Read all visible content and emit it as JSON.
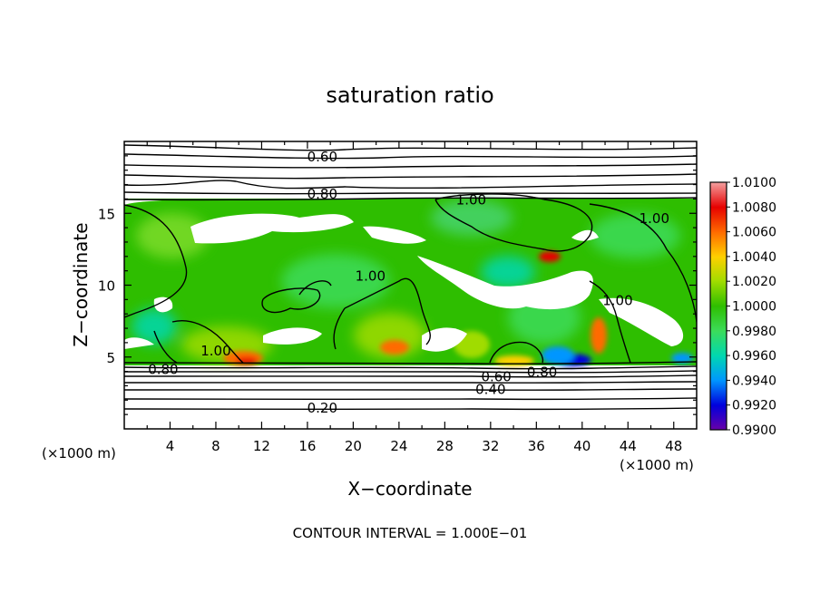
{
  "chart_data": {
    "type": "heatmap",
    "title": "saturation ratio",
    "xlabel": "X−coordinate",
    "ylabel": "Z−coordinate",
    "x_unit": "(×1000 m)",
    "z_unit": "(×1000 m)",
    "xlim": [
      0,
      50
    ],
    "ylim": [
      0,
      20
    ],
    "x_ticks": [
      "4",
      "8",
      "12",
      "16",
      "20",
      "24",
      "28",
      "32",
      "36",
      "40",
      "44",
      "48"
    ],
    "y_ticks": [
      "5",
      "10",
      "15"
    ],
    "colorbar": {
      "labels": [
        "1.0100",
        "1.0080",
        "1.0060",
        "1.0040",
        "1.0020",
        "1.0000",
        "0.9980",
        "0.9960",
        "0.9940",
        "0.9920",
        "0.9900"
      ],
      "colors": [
        "#f4a0a0",
        "#e60000",
        "#ff6a00",
        "#ffd000",
        "#a0dc00",
        "#2ebe00",
        "#3cdc5a",
        "#00d8b0",
        "#0096ff",
        "#0000dc",
        "#6a00a8"
      ]
    },
    "contour_labels": [
      {
        "text": "0.60",
        "x": 17.3,
        "y": 19.0
      },
      {
        "text": "0.80",
        "x": 17.3,
        "y": 16.4
      },
      {
        "text": "1.00",
        "x": 30.3,
        "y": 16.0
      },
      {
        "text": "1.00",
        "x": 46.3,
        "y": 14.7
      },
      {
        "text": "1.00",
        "x": 21.5,
        "y": 10.7
      },
      {
        "text": "1.00",
        "x": 43.1,
        "y": 9.0
      },
      {
        "text": "1.00",
        "x": 8.0,
        "y": 5.5
      },
      {
        "text": "0.80",
        "x": 3.4,
        "y": 4.2
      },
      {
        "text": "0.80",
        "x": 36.5,
        "y": 4.0
      },
      {
        "text": "0.60",
        "x": 32.5,
        "y": 3.7
      },
      {
        "text": "0.40",
        "x": 32.0,
        "y": 2.8
      },
      {
        "text": "0.20",
        "x": 17.3,
        "y": 1.5
      }
    ],
    "footer": "CONTOUR INTERVAL = 1.000E−01"
  }
}
